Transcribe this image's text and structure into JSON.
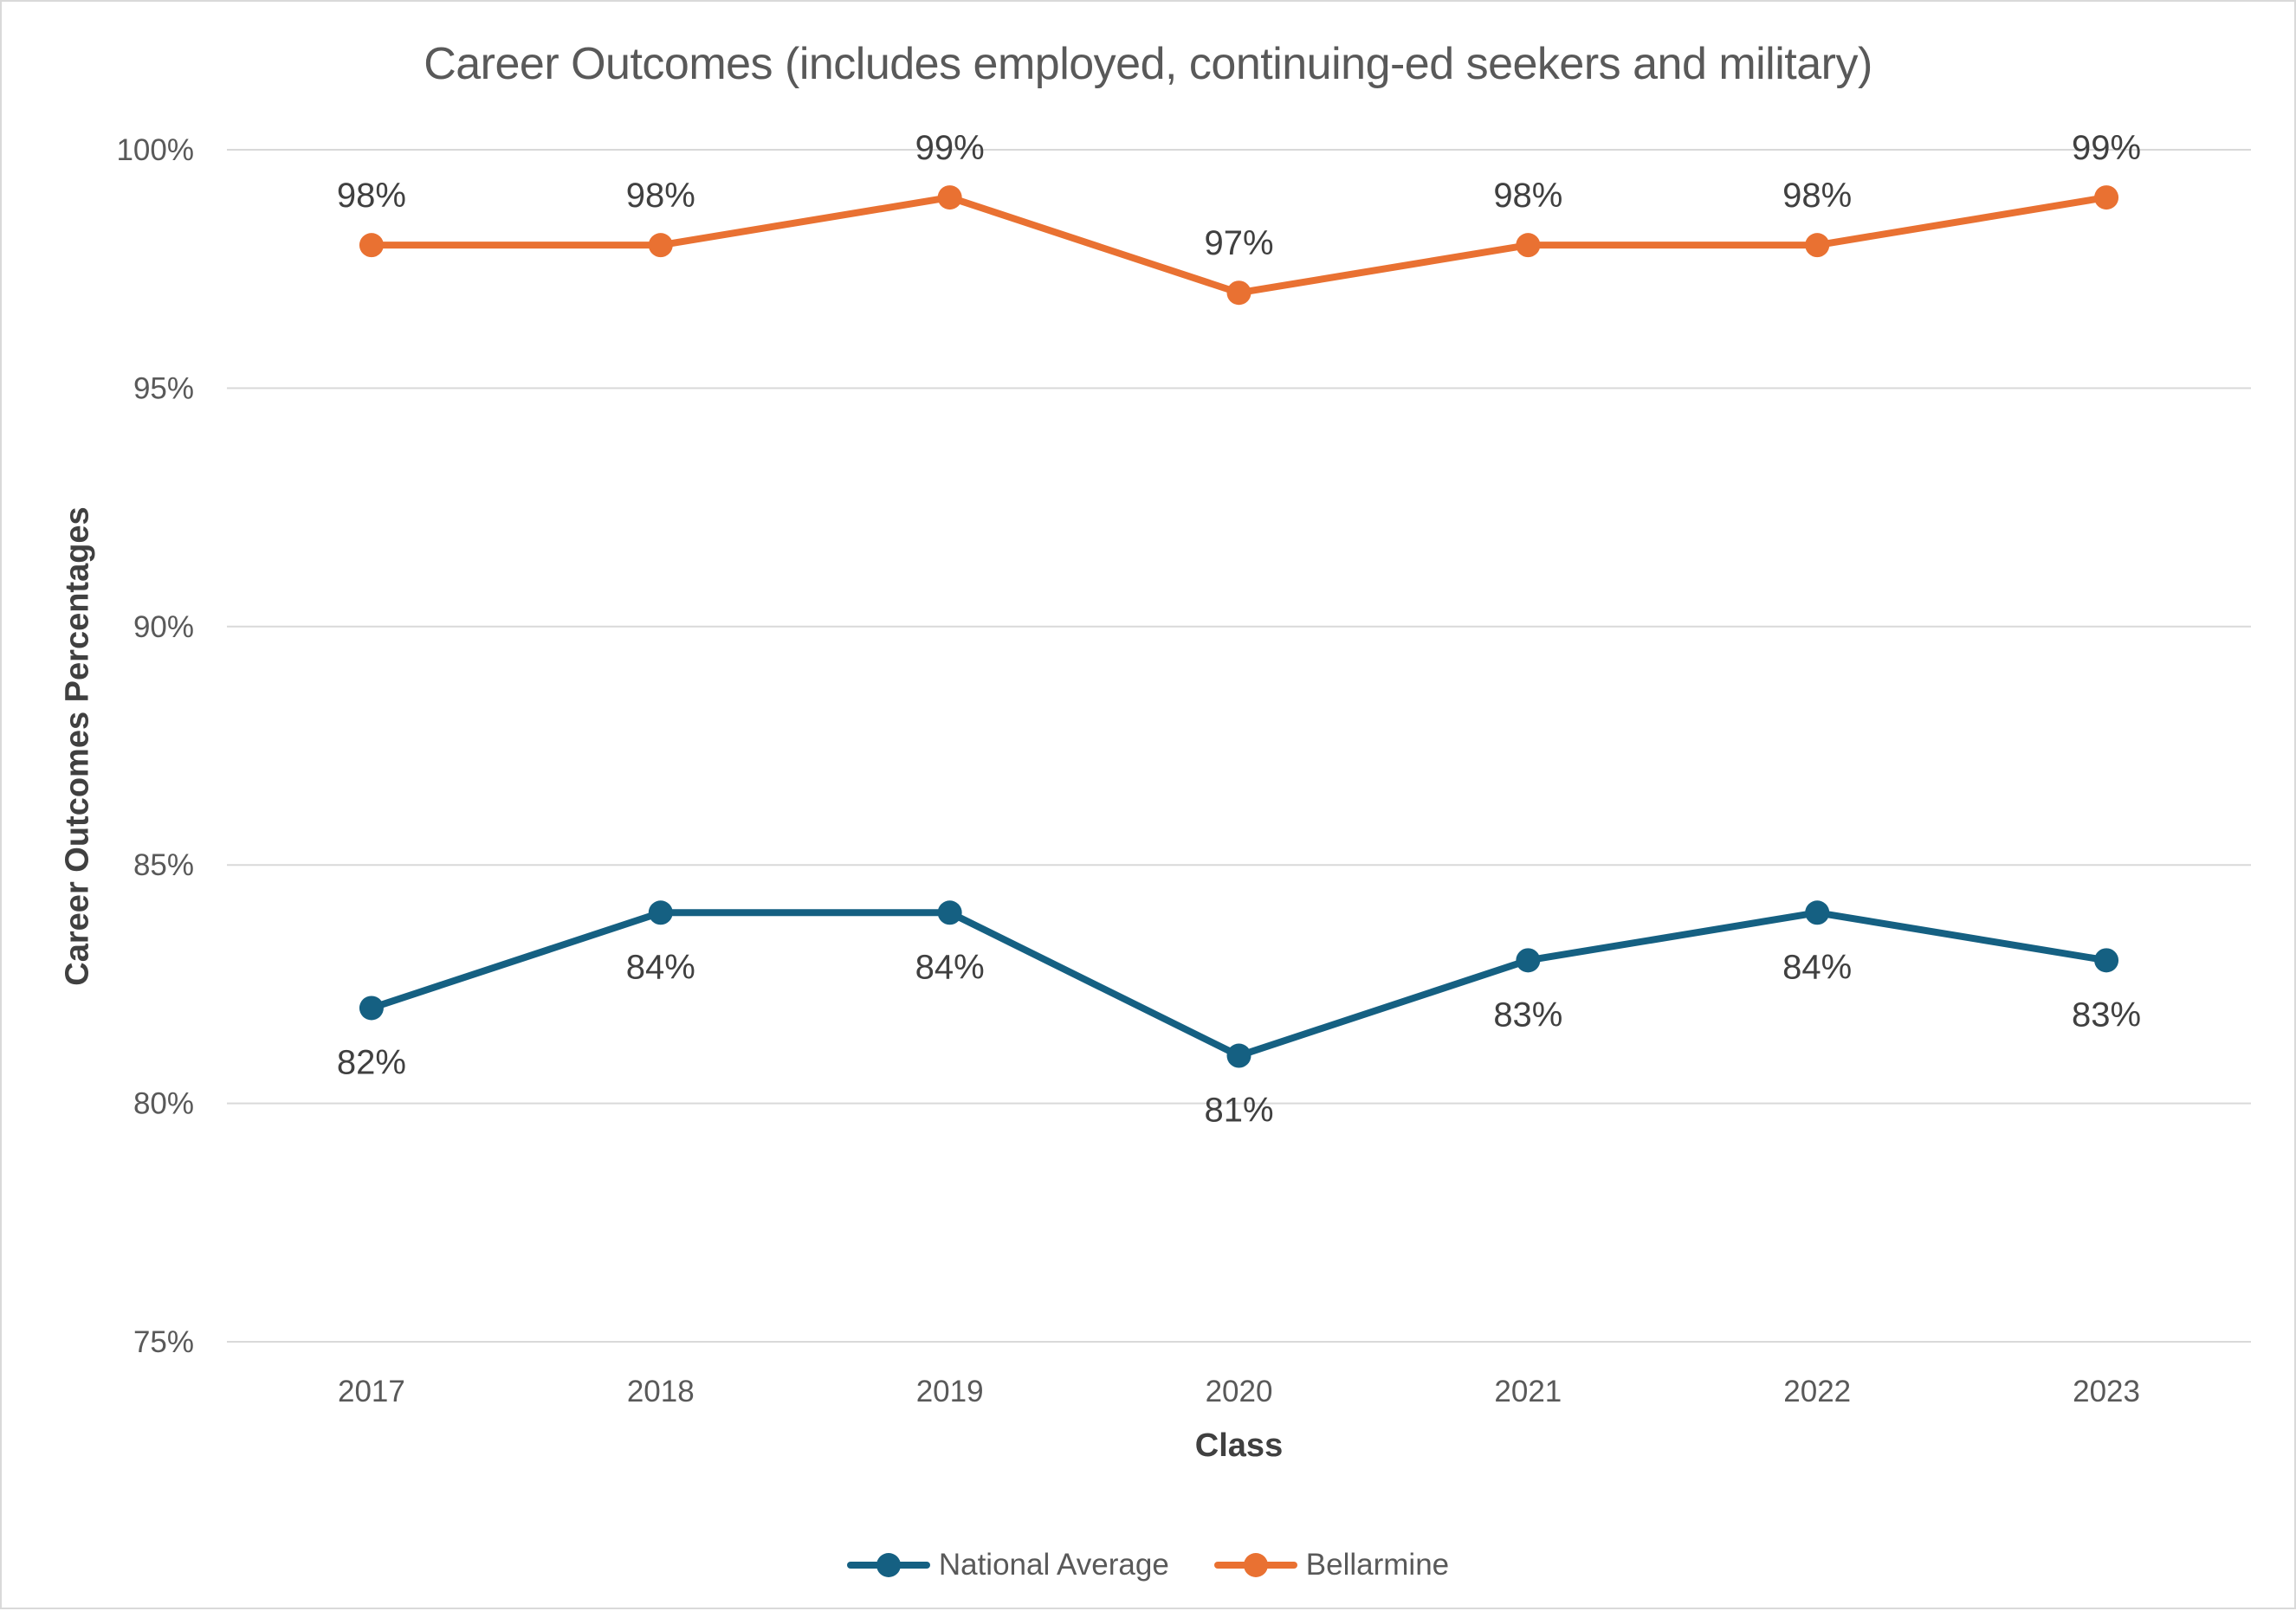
{
  "frame": {
    "background_color": "#FFFFFF",
    "border_color": "#D9D9D9"
  },
  "chart_data": {
    "type": "line",
    "title": "Career Outcomes (includes employed, continuing-ed seekers and military)",
    "xlabel": "Class",
    "ylabel": "Career Outcomes Percentages",
    "categories": [
      "2017",
      "2018",
      "2019",
      "2020",
      "2021",
      "2022",
      "2023"
    ],
    "series": [
      {
        "name": "National Average",
        "color": "#156082",
        "values": [
          82,
          84,
          84,
          81,
          83,
          84,
          83
        ],
        "labels": [
          "82%",
          "84%",
          "84%",
          "81%",
          "83%",
          "84%",
          "83%"
        ],
        "label_position": "below"
      },
      {
        "name": "Bellarmine",
        "color": "#E97132",
        "values": [
          98,
          98,
          99,
          97,
          98,
          98,
          99
        ],
        "labels": [
          "98%",
          "98%",
          "99%",
          "97%",
          "98%",
          "98%",
          "99%"
        ],
        "label_position": "above"
      }
    ],
    "ylim": [
      75,
      100
    ],
    "y_tick_values": [
      100,
      95,
      90,
      85,
      80,
      75
    ],
    "y_ticks": [
      "100%",
      "95%",
      "90%",
      "85%",
      "80%",
      "75%"
    ],
    "grid": true,
    "gridline_color": "#D9D9D9",
    "legend_position": "bottom",
    "text_colors": {
      "title": "#595959",
      "ticks": "#595959",
      "data_labels": "#404040",
      "axis_titles": "#404040",
      "legend": "#595959"
    }
  }
}
